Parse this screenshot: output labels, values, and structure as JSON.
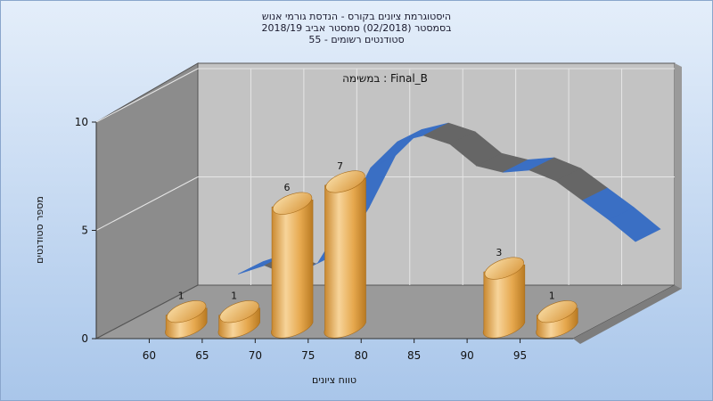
{
  "title_lines": [
    "היסטוגרמת ציונים בקורס - הנדסת גורמי אנוש",
    "בסמסטר  (02/2018)  סמסטר אביב 2018/19",
    "55 - סטודנטים רשומים"
  ],
  "annotation": "במשימה : Final_B",
  "colors": {
    "background_top": "#e4eefa",
    "background_bottom": "#a9c6ea",
    "back_wall": "#c3c3c3",
    "side_wall": "#8c8c8c",
    "floor": "#9a9a9a",
    "bar_light": "#f7d49a",
    "bar_mid": "#e6a84e",
    "bar_dark": "#b97a22",
    "ribbon_front": "#3a6fc4",
    "ribbon_back": "#666666"
  },
  "chart_data": {
    "type": "bar",
    "title": "היסטוגרמת ציונים בקורס - הנדסת גורמי אנוש בסמסטר (02/2018) סמסטר אביב 2018/19 55 - סטודנטים רשומים",
    "xlabel": "טווח ציונים",
    "ylabel": "מספר סטודנטים",
    "ylim": [
      0,
      10
    ],
    "yticks": [
      "0",
      "5",
      "10"
    ],
    "xticks": [
      "60",
      "65",
      "70",
      "75",
      "80",
      "85",
      "90",
      "95"
    ],
    "grid": true,
    "bars": [
      {
        "x": 62.5,
        "value": 1,
        "label": "1"
      },
      {
        "x": 67.5,
        "value": 1,
        "label": "1"
      },
      {
        "x": 72.5,
        "value": 6,
        "label": "6"
      },
      {
        "x": 77.5,
        "value": 7,
        "label": "7"
      },
      {
        "x": 92.5,
        "value": 3,
        "label": "3"
      },
      {
        "x": 97.5,
        "value": 1,
        "label": "1"
      }
    ],
    "curve": {
      "type": "line",
      "x": [
        62.5,
        65,
        67.5,
        70,
        72.5,
        75,
        77.5,
        80,
        82.5,
        85,
        87.5,
        90,
        92.5,
        95,
        97.5,
        100
      ],
      "values": [
        1.5,
        1.9,
        1.4,
        2.0,
        4.0,
        6.4,
        7.6,
        7.9,
        7.5,
        6.5,
        6.2,
        6.3,
        5.8,
        4.9,
        4.0,
        3.0
      ]
    }
  }
}
